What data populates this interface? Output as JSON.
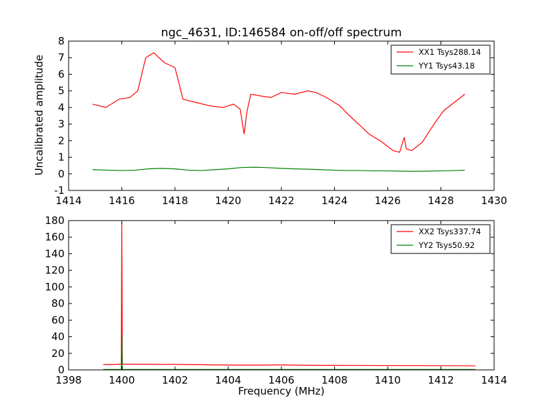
{
  "figure": {
    "title": "ngc_4631, ID:146584 on-off/off spectrum",
    "ylabel": "Uncalibrated amplitude",
    "xlabel": "Frequency (MHz)"
  },
  "colors": {
    "xx": "#ff0000",
    "yy": "#008000"
  },
  "chart_data": [
    {
      "type": "line",
      "id": "top",
      "xlim": [
        1414,
        1430
      ],
      "ylim": [
        -1,
        8
      ],
      "xticks": [
        1414,
        1416,
        1418,
        1420,
        1422,
        1424,
        1426,
        1428,
        1430
      ],
      "yticks": [
        -1,
        0,
        1,
        2,
        3,
        4,
        5,
        6,
        7,
        8
      ],
      "legend_position": "top-right",
      "series": [
        {
          "name": "XX1 Tsys288.14",
          "color": "#ff0000",
          "x": [
            1414.9,
            1415.4,
            1415.9,
            1416.3,
            1416.6,
            1416.9,
            1417.2,
            1417.6,
            1418.0,
            1418.3,
            1418.8,
            1419.3,
            1419.8,
            1420.2,
            1420.45,
            1420.6,
            1420.7,
            1420.85,
            1421.2,
            1421.6,
            1422.0,
            1422.5,
            1423.0,
            1423.3,
            1423.7,
            1424.2,
            1424.5,
            1424.9,
            1425.3,
            1425.8,
            1426.2,
            1426.45,
            1426.62,
            1426.7,
            1426.9,
            1427.3,
            1427.7,
            1428.1,
            1428.5,
            1428.9
          ],
          "y": [
            4.2,
            4.0,
            4.5,
            4.6,
            5.0,
            7.0,
            7.3,
            6.7,
            6.4,
            4.5,
            4.3,
            4.1,
            4.0,
            4.2,
            3.9,
            2.4,
            3.7,
            4.8,
            4.7,
            4.6,
            4.9,
            4.8,
            5.0,
            4.9,
            4.6,
            4.1,
            3.6,
            3.0,
            2.4,
            1.9,
            1.4,
            1.3,
            2.2,
            1.5,
            1.4,
            1.9,
            2.9,
            3.8,
            4.3,
            4.8
          ]
        },
        {
          "name": "YY1 Tsys43.18",
          "color": "#008000",
          "x": [
            1414.9,
            1415.5,
            1416.0,
            1416.5,
            1417.0,
            1417.5,
            1418.0,
            1418.5,
            1419.0,
            1419.5,
            1420.0,
            1420.5,
            1421.0,
            1421.5,
            1422.0,
            1422.5,
            1423.0,
            1423.5,
            1424.0,
            1424.5,
            1425.0,
            1425.5,
            1426.0,
            1426.5,
            1427.0,
            1427.5,
            1428.0,
            1428.5,
            1428.9
          ],
          "y": [
            0.25,
            0.22,
            0.2,
            0.22,
            0.3,
            0.33,
            0.3,
            0.22,
            0.2,
            0.25,
            0.3,
            0.38,
            0.4,
            0.37,
            0.33,
            0.3,
            0.28,
            0.25,
            0.22,
            0.2,
            0.2,
            0.18,
            0.18,
            0.16,
            0.15,
            0.16,
            0.18,
            0.2,
            0.22
          ]
        }
      ]
    },
    {
      "type": "line",
      "id": "bottom",
      "xlim": [
        1398,
        1414
      ],
      "ylim": [
        0,
        180
      ],
      "xticks": [
        1398,
        1400,
        1402,
        1404,
        1406,
        1408,
        1410,
        1412,
        1414
      ],
      "yticks": [
        0,
        20,
        40,
        60,
        80,
        100,
        120,
        140,
        160,
        180
      ],
      "legend_position": "top-right",
      "series": [
        {
          "name": "XX2 Tsys337.74",
          "color": "#ff0000",
          "x": [
            1399.3,
            1399.7,
            1399.98,
            1400.0,
            1400.02,
            1400.4,
            1401.0,
            1401.5,
            1402.0,
            1402.5,
            1403.0,
            1403.5,
            1404.0,
            1404.5,
            1405.0,
            1405.5,
            1406.0,
            1406.5,
            1407.0,
            1407.5,
            1408.0,
            1408.5,
            1409.0,
            1409.5,
            1410.0,
            1410.5,
            1411.0,
            1411.5,
            1412.0,
            1412.5,
            1413.0,
            1413.3
          ],
          "y": [
            6.5,
            6.5,
            7,
            177,
            7,
            6.8,
            6.8,
            6.6,
            6.7,
            6.4,
            6.3,
            6.0,
            5.9,
            5.8,
            5.8,
            5.9,
            6.0,
            5.8,
            5.6,
            5.5,
            5.5,
            5.4,
            5.4,
            5.3,
            5.3,
            5.2,
            5.2,
            5.1,
            5.1,
            5.0,
            5.0,
            4.9
          ]
        },
        {
          "name": "YY2 Tsys50.92",
          "color": "#008000",
          "x": [
            1399.3,
            1399.98,
            1400.0,
            1400.02,
            1401.0,
            1402.0,
            1403.0,
            1404.0,
            1405.0,
            1406.0,
            1407.0,
            1408.0,
            1409.0,
            1410.0,
            1411.0,
            1412.0,
            1413.0,
            1413.3
          ],
          "y": [
            0.5,
            0.5,
            43,
            0.5,
            0.5,
            0.5,
            0.5,
            0.5,
            0.5,
            0.5,
            0.5,
            0.5,
            0.5,
            0.5,
            0.5,
            0.5,
            0.5,
            0.5
          ]
        }
      ]
    }
  ]
}
